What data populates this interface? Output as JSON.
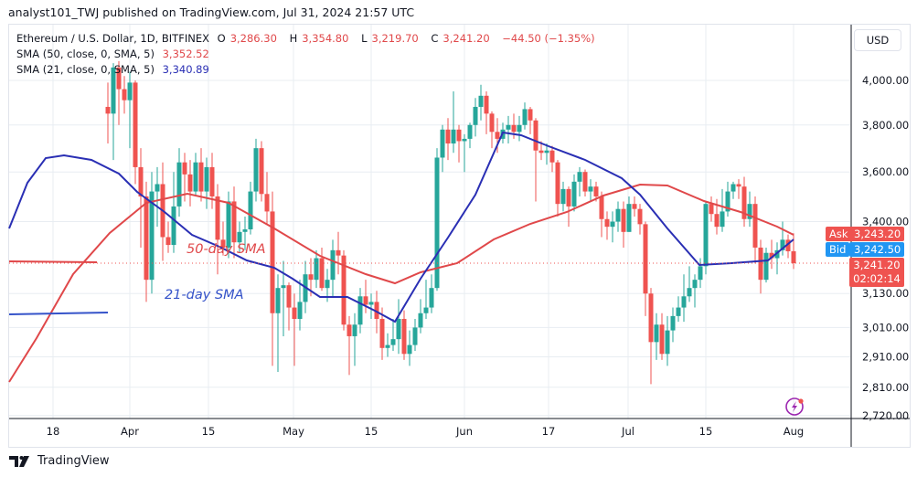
{
  "caption": "analyst101_TWJ published on TradingView.com, Jul 31, 2024 21:57 UTC",
  "legend": {
    "symbol": "Ethereum / U.S. Dollar, 1D, BITFINEX",
    "open_label": "O",
    "open": "3,286.30",
    "high_label": "H",
    "high": "3,354.80",
    "low_label": "L",
    "low": "3,219.70",
    "close_label": "C",
    "close": "3,241.20",
    "change": "−44.50 (−1.35%)",
    "sma50_label": "SMA (50, close, 0, SMA, 5)",
    "sma50_value": "3,352.52",
    "sma21_label": "SMA (21, close, 0, SMA, 5)",
    "sma21_value": "3,340.89"
  },
  "price_axis": {
    "currency": "USD",
    "ticks": [
      "4,000.00",
      "3,800.00",
      "3,600.00",
      "3,400.00",
      "3,130.00",
      "3,010.00",
      "2,910.00",
      "2,810.00",
      "2,720.00"
    ],
    "ask_label": "Ask",
    "ask": "3,243.20",
    "bid_label": "Bid",
    "bid": "3,242.50",
    "last": "3,241.20",
    "countdown": "02:02:14"
  },
  "time_axis": {
    "ticks": [
      "18",
      "Apr",
      "15",
      "May",
      "15",
      "Jun",
      "17",
      "Jul",
      "15",
      "Aug"
    ]
  },
  "annotations": {
    "sma50_text": "50-day SMA",
    "sma21_text": "21-day SMA"
  },
  "footer": {
    "brand": "TradingView"
  },
  "colors": {
    "up": "#26a69a",
    "down": "#ef5350",
    "sma50": "#e0484a",
    "sma21": "#2a2fb4",
    "ask": "#ef5350",
    "bid": "#2196f3",
    "grid": "#e8edf2"
  },
  "chart_data": {
    "type": "candlestick",
    "title": "Ethereum / U.S. Dollar, 1D, BITFINEX",
    "scale": "log",
    "ylim": [
      2700,
      4150
    ],
    "x_ticks": [
      "18",
      "Apr",
      "15",
      "May",
      "15",
      "Jun",
      "17",
      "Jul",
      "15",
      "Aug"
    ],
    "y_ticks": [
      4000,
      3800,
      3600,
      3400,
      3130,
      3010,
      2910,
      2810,
      2720
    ],
    "last_candle": {
      "open": 3286.3,
      "high": 3354.8,
      "low": 3219.7,
      "close": 3241.2,
      "change": -44.5,
      "change_pct": -1.35
    },
    "candles": [
      [
        3880,
        3990,
        3720,
        3850
      ],
      [
        3850,
        4080,
        3650,
        4060
      ],
      [
        4060,
        4090,
        3800,
        3960
      ],
      [
        3960,
        4020,
        3850,
        3910
      ],
      [
        3910,
        4040,
        3700,
        3990
      ],
      [
        3990,
        4000,
        3550,
        3620
      ],
      [
        3620,
        3700,
        3300,
        3500
      ],
      [
        3500,
        3560,
        3100,
        3180
      ],
      [
        3180,
        3600,
        3130,
        3520
      ],
      [
        3520,
        3620,
        3380,
        3550
      ],
      [
        3550,
        3640,
        3250,
        3340
      ],
      [
        3340,
        3400,
        3280,
        3310
      ],
      [
        3310,
        3600,
        3280,
        3460
      ],
      [
        3460,
        3700,
        3420,
        3640
      ],
      [
        3640,
        3680,
        3480,
        3590
      ],
      [
        3590,
        3650,
        3460,
        3520
      ],
      [
        3520,
        3680,
        3500,
        3640
      ],
      [
        3640,
        3700,
        3480,
        3520
      ],
      [
        3520,
        3660,
        3450,
        3620
      ],
      [
        3620,
        3680,
        3450,
        3500
      ],
      [
        3500,
        3550,
        3200,
        3330
      ],
      [
        3330,
        3400,
        3270,
        3300
      ],
      [
        3300,
        3520,
        3260,
        3480
      ],
      [
        3480,
        3540,
        3260,
        3320
      ],
      [
        3320,
        3400,
        3280,
        3360
      ],
      [
        3360,
        3420,
        3290,
        3370
      ],
      [
        3370,
        3560,
        3350,
        3520
      ],
      [
        3520,
        3740,
        3480,
        3700
      ],
      [
        3700,
        3730,
        3480,
        3510
      ],
      [
        3510,
        3600,
        3390,
        3440
      ],
      [
        3440,
        3520,
        2880,
        3060
      ],
      [
        3060,
        3200,
        2860,
        3150
      ],
      [
        3150,
        3250,
        2980,
        3160
      ],
      [
        3160,
        3170,
        3000,
        3080
      ],
      [
        3080,
        3130,
        2880,
        3040
      ],
      [
        3040,
        3180,
        3000,
        3100
      ],
      [
        3100,
        3250,
        3060,
        3200
      ],
      [
        3200,
        3260,
        3120,
        3180
      ],
      [
        3180,
        3290,
        3150,
        3260
      ],
      [
        3260,
        3300,
        3140,
        3150
      ],
      [
        3150,
        3220,
        3100,
        3180
      ],
      [
        3180,
        3330,
        3120,
        3290
      ],
      [
        3290,
        3360,
        3200,
        3270
      ],
      [
        3270,
        3290,
        3000,
        3020
      ],
      [
        3020,
        3050,
        2850,
        2980
      ],
      [
        2980,
        3060,
        2880,
        3020
      ],
      [
        3020,
        3150,
        2990,
        3120
      ],
      [
        3120,
        3180,
        3060,
        3090
      ],
      [
        3090,
        3130,
        3040,
        3100
      ],
      [
        3100,
        3140,
        2990,
        3040
      ],
      [
        3040,
        3080,
        2900,
        2940
      ],
      [
        2940,
        2990,
        2910,
        2950
      ],
      [
        2950,
        3040,
        2930,
        2970
      ],
      [
        2970,
        3110,
        2920,
        3040
      ],
      [
        3040,
        3070,
        2900,
        2920
      ],
      [
        2920,
        3000,
        2880,
        2950
      ],
      [
        2950,
        3040,
        2930,
        3010
      ],
      [
        3010,
        3110,
        2990,
        3060
      ],
      [
        3060,
        3180,
        3040,
        3080
      ],
      [
        3080,
        3200,
        3060,
        3150
      ],
      [
        3150,
        3700,
        3140,
        3660
      ],
      [
        3660,
        3800,
        3600,
        3780
      ],
      [
        3780,
        3830,
        3650,
        3720
      ],
      [
        3720,
        3950,
        3680,
        3780
      ],
      [
        3780,
        3800,
        3640,
        3730
      ],
      [
        3730,
        3760,
        3600,
        3740
      ],
      [
        3740,
        3810,
        3700,
        3800
      ],
      [
        3800,
        3920,
        3750,
        3880
      ],
      [
        3880,
        3980,
        3820,
        3930
      ],
      [
        3930,
        3950,
        3760,
        3850
      ],
      [
        3850,
        3860,
        3700,
        3770
      ],
      [
        3770,
        3830,
        3680,
        3740
      ],
      [
        3740,
        3810,
        3720,
        3780
      ],
      [
        3780,
        3840,
        3720,
        3800
      ],
      [
        3800,
        3850,
        3740,
        3770
      ],
      [
        3770,
        3840,
        3730,
        3800
      ],
      [
        3800,
        3900,
        3780,
        3870
      ],
      [
        3870,
        3880,
        3760,
        3820
      ],
      [
        3820,
        3830,
        3480,
        3690
      ],
      [
        3690,
        3730,
        3650,
        3680
      ],
      [
        3680,
        3720,
        3630,
        3690
      ],
      [
        3690,
        3710,
        3600,
        3640
      ],
      [
        3640,
        3650,
        3420,
        3470
      ],
      [
        3470,
        3560,
        3440,
        3530
      ],
      [
        3530,
        3540,
        3380,
        3460
      ],
      [
        3460,
        3590,
        3440,
        3560
      ],
      [
        3560,
        3620,
        3500,
        3600
      ],
      [
        3600,
        3610,
        3500,
        3520
      ],
      [
        3520,
        3570,
        3480,
        3540
      ],
      [
        3540,
        3560,
        3480,
        3500
      ],
      [
        3500,
        3520,
        3340,
        3410
      ],
      [
        3410,
        3440,
        3330,
        3380
      ],
      [
        3380,
        3440,
        3320,
        3400
      ],
      [
        3400,
        3480,
        3360,
        3450
      ],
      [
        3450,
        3480,
        3300,
        3360
      ],
      [
        3360,
        3500,
        3360,
        3470
      ],
      [
        3470,
        3500,
        3420,
        3450
      ],
      [
        3450,
        3470,
        3350,
        3390
      ],
      [
        3390,
        3400,
        3050,
        3130
      ],
      [
        3130,
        3150,
        2820,
        2960
      ],
      [
        2960,
        3060,
        2900,
        3020
      ],
      [
        3020,
        3060,
        2900,
        2920
      ],
      [
        2920,
        3050,
        2880,
        3000
      ],
      [
        3000,
        3080,
        2960,
        3050
      ],
      [
        3050,
        3120,
        3030,
        3080
      ],
      [
        3080,
        3200,
        3030,
        3120
      ],
      [
        3120,
        3230,
        3100,
        3150
      ],
      [
        3150,
        3200,
        3080,
        3180
      ],
      [
        3180,
        3260,
        3150,
        3230
      ],
      [
        3230,
        3480,
        3200,
        3470
      ],
      [
        3470,
        3500,
        3400,
        3430
      ],
      [
        3430,
        3490,
        3350,
        3380
      ],
      [
        3380,
        3530,
        3360,
        3440
      ],
      [
        3440,
        3560,
        3420,
        3520
      ],
      [
        3520,
        3560,
        3490,
        3550
      ],
      [
        3550,
        3570,
        3490,
        3540
      ],
      [
        3540,
        3580,
        3380,
        3410
      ],
      [
        3410,
        3520,
        3380,
        3470
      ],
      [
        3470,
        3500,
        3240,
        3300
      ],
      [
        3300,
        3330,
        3130,
        3180
      ],
      [
        3180,
        3300,
        3170,
        3280
      ],
      [
        3280,
        3330,
        3220,
        3260
      ],
      [
        3260,
        3320,
        3200,
        3290
      ],
      [
        3290,
        3400,
        3270,
        3330
      ],
      [
        3330,
        3350,
        3260,
        3286
      ],
      [
        3286.3,
        3354.8,
        3219.7,
        3241.2
      ]
    ]
  }
}
